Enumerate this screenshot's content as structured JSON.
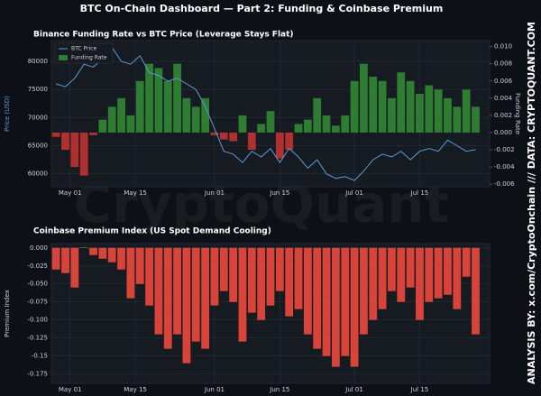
{
  "title": "BTC On-Chain Dashboard — Part 2: Funding & Coinbase Premium",
  "watermark": "CryptoQuant",
  "credit": "ANALYSIS BY: x.com/CryptoOnchain   ///   DATA: CRYPTOQUANT.COM",
  "chart_data": [
    {
      "type": "combo",
      "title": "Binance Funding Rate vs BTC Price (Leverage Stays Flat)",
      "y_label": "Price (USD)",
      "y2_label": "Funding Rate",
      "x": [
        "Apr 28",
        "Apr 30",
        "May 02",
        "May 04",
        "May 06",
        "May 08",
        "May 10",
        "May 12",
        "May 14",
        "May 16",
        "May 18",
        "May 20",
        "May 22",
        "May 24",
        "May 26",
        "May 28",
        "May 30",
        "Jun 01",
        "Jun 03",
        "Jun 05",
        "Jun 07",
        "Jun 09",
        "Jun 11",
        "Jun 13",
        "Jun 15",
        "Jun 17",
        "Jun 19",
        "Jun 21",
        "Jun 23",
        "Jun 25",
        "Jun 27",
        "Jun 29",
        "Jul 01",
        "Jul 03",
        "Jul 05",
        "Jul 07",
        "Jul 09",
        "Jul 11",
        "Jul 13",
        "Jul 15",
        "Jul 17",
        "Jul 19",
        "Jul 21",
        "Jul 23",
        "Jul 25",
        "Jul 27"
      ],
      "xlim": [
        "Apr 27",
        "Jul 30"
      ],
      "xticks": [
        "May 01",
        "May 15",
        "Jun 01",
        "Jun 15",
        "Jul 01",
        "Jul 15"
      ],
      "ylim": [
        57700,
        83700
      ],
      "yticks": [
        60000,
        65000,
        70000,
        75000,
        80000
      ],
      "y2lim": [
        -0.0063,
        0.0107
      ],
      "y2ticks": [
        -0.006,
        -0.004,
        -0.002,
        {
          "value": 0,
          "label": "0.000"
        },
        0.002,
        0.004,
        0.006,
        0.008,
        {
          "value": 0.01,
          "label": "0.010"
        }
      ],
      "grid": true,
      "legend": "upper left",
      "series": [
        {
          "name": "BTC Price",
          "type": "line",
          "color": "#5b9bd5",
          "values": [
            76000,
            75500,
            77000,
            79500,
            79000,
            80500,
            82500,
            80000,
            79500,
            81000,
            78000,
            77500,
            76500,
            77000,
            76000,
            75000,
            72000,
            68000,
            64000,
            63500,
            62000,
            64000,
            63000,
            64500,
            62000,
            64500,
            63000,
            61000,
            62500,
            60000,
            59200,
            59500,
            58800,
            60500,
            62500,
            63500,
            63000,
            64000,
            62500,
            64000,
            64500,
            64000,
            66000,
            65000,
            64000,
            64300
          ]
        },
        {
          "name": "Funding Rate",
          "type": "bar",
          "axis": "y2",
          "color": "#2e7d32",
          "negative_color": "#b03030",
          "values": [
            -0.0005,
            -0.002,
            -0.004,
            -0.005,
            -0.0003,
            0.0015,
            0.003,
            0.004,
            0.002,
            0.006,
            0.008,
            0.0075,
            0.006,
            0.008,
            0.004,
            0.003,
            0.004,
            -0.0003,
            -0.0008,
            -0.001,
            0.002,
            -0.002,
            0.001,
            0.0025,
            -0.003,
            -0.002,
            0.001,
            0.0015,
            0.004,
            0.002,
            0.0008,
            0.002,
            0.006,
            0.008,
            0.0065,
            0.006,
            0.004,
            0.007,
            0.006,
            0.0045,
            0.0055,
            0.005,
            0.004,
            0.003,
            0.005,
            0.003
          ]
        }
      ]
    },
    {
      "type": "bar",
      "title": "Coinbase Premium Index (US Spot Demand Cooling)",
      "y_label": "Premium Index",
      "x": [
        "Apr 28",
        "Apr 30",
        "May 02",
        "May 04",
        "May 06",
        "May 08",
        "May 10",
        "May 12",
        "May 14",
        "May 16",
        "May 18",
        "May 20",
        "May 22",
        "May 24",
        "May 26",
        "May 28",
        "May 30",
        "Jun 01",
        "Jun 03",
        "Jun 05",
        "Jun 07",
        "Jun 09",
        "Jun 11",
        "Jun 13",
        "Jun 15",
        "Jun 17",
        "Jun 19",
        "Jun 21",
        "Jun 23",
        "Jun 25",
        "Jun 27",
        "Jun 29",
        "Jul 01",
        "Jul 03",
        "Jul 05",
        "Jul 07",
        "Jul 09",
        "Jul 11",
        "Jul 13",
        "Jul 15",
        "Jul 17",
        "Jul 19",
        "Jul 21",
        "Jul 23",
        "Jul 25",
        "Jul 27"
      ],
      "xlim": [
        "Apr 27",
        "Jul 30"
      ],
      "xticks": [
        "May 01",
        "May 15",
        "Jun 01",
        "Jun 15",
        "Jul 01",
        "Jul 15"
      ],
      "ylim": [
        -0.188,
        0.006
      ],
      "yticks": [
        -0.175,
        -0.15,
        -0.125,
        {
          "value": -0.1,
          "label": "-0.100"
        },
        -0.075,
        {
          "value": -0.05,
          "label": "-0.050"
        },
        -0.025,
        {
          "value": 0,
          "label": "0.000"
        }
      ],
      "grid": true,
      "color": "#d9443a",
      "positive_color": "#2e7d32",
      "values": [
        -0.03,
        -0.035,
        -0.055,
        0.001,
        -0.01,
        -0.015,
        -0.02,
        -0.03,
        -0.07,
        -0.05,
        -0.08,
        -0.12,
        -0.14,
        -0.12,
        -0.16,
        -0.13,
        -0.14,
        -0.08,
        -0.06,
        -0.075,
        -0.13,
        -0.09,
        -0.1,
        -0.08,
        -0.06,
        -0.095,
        -0.085,
        -0.12,
        -0.14,
        -0.15,
        -0.165,
        -0.15,
        -0.165,
        -0.12,
        -0.1,
        -0.085,
        -0.06,
        -0.075,
        -0.055,
        -0.1,
        -0.075,
        -0.07,
        -0.065,
        -0.085,
        -0.04,
        -0.12
      ]
    }
  ]
}
